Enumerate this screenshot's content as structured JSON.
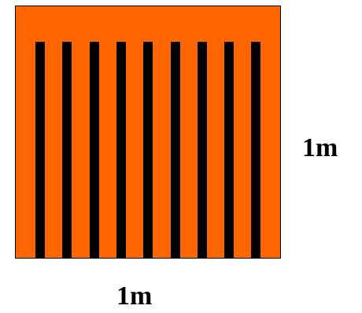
{
  "diagram": {
    "panel_color": "#FF6600",
    "stripe_color": "#000000",
    "stripe_count": 9,
    "height_label": "1m",
    "width_label": "1m"
  }
}
